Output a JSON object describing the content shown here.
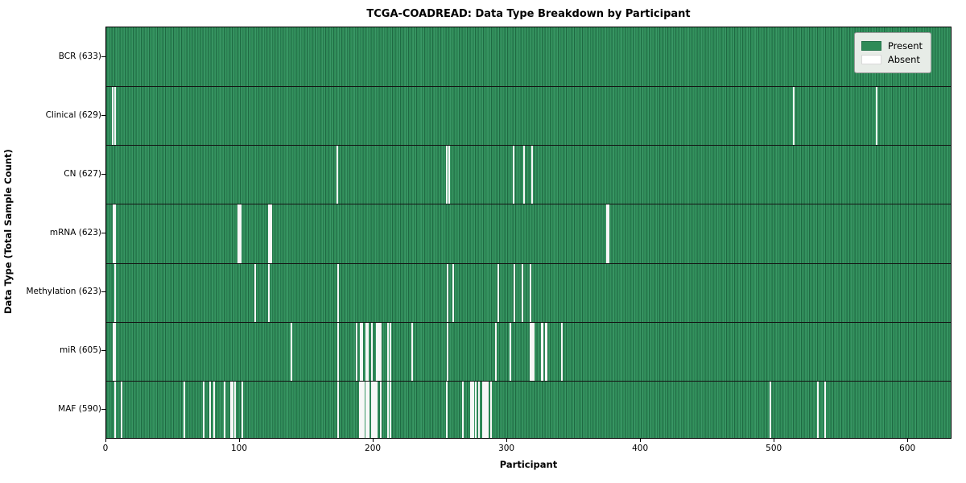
{
  "title": "TCGA-COADREAD: Data Type Breakdown by Participant",
  "axes": {
    "xlabel": "Participant",
    "ylabel": "Data Type (Total Sample Count)"
  },
  "legend": {
    "present_label": "Present",
    "absent_label": "Absent"
  },
  "chart_data": {
    "type": "heatmap",
    "title": "TCGA-COADREAD: Data Type Breakdown by Participant",
    "xlabel": "Participant",
    "ylabel": "Data Type (Total Sample Count)",
    "xlim": [
      0,
      633
    ],
    "x_ticks": [
      0,
      100,
      200,
      300,
      400,
      500,
      600
    ],
    "n_participants": 633,
    "grid": false,
    "legend_position": "upper right",
    "colors": {
      "present": "#2e8b57",
      "present_edge": "#1f6a43",
      "absent": "#ffffff"
    },
    "legend_entries": [
      {
        "label": "Present",
        "color": "#2e8b57"
      },
      {
        "label": "Absent",
        "color": "#ffffff"
      }
    ],
    "rows": [
      {
        "label": "BCR (633)",
        "data_type": "BCR",
        "present_count": 633,
        "absent_count": 0,
        "absent_participants": []
      },
      {
        "label": "Clinical (629)",
        "data_type": "Clinical",
        "present_count": 629,
        "absent_count": 4,
        "absent_participants": [
          4,
          6,
          514,
          576
        ]
      },
      {
        "label": "CN (627)",
        "data_type": "CN",
        "present_count": 627,
        "absent_count": 6,
        "absent_participants": [
          172,
          254,
          256,
          304,
          312,
          318
        ]
      },
      {
        "label": "mRNA (623)",
        "data_type": "mRNA",
        "present_count": 623,
        "absent_count": 10,
        "absent_participants": [
          5,
          6,
          98,
          99,
          100,
          121,
          122,
          123,
          374,
          375
        ]
      },
      {
        "label": "Methylation (623)",
        "data_type": "Methylation",
        "present_count": 623,
        "absent_count": 10,
        "absent_participants": [
          6,
          111,
          121,
          173,
          255,
          259,
          293,
          305,
          311,
          317
        ]
      },
      {
        "label": "miR (605)",
        "data_type": "miR",
        "present_count": 605,
        "absent_count": 28,
        "absent_participants": [
          5,
          6,
          138,
          173,
          187,
          190,
          191,
          194,
          195,
          198,
          202,
          203,
          204,
          205,
          210,
          212,
          228,
          255,
          291,
          302,
          317,
          318,
          319,
          325,
          326,
          328,
          329,
          340
        ]
      },
      {
        "label": "MAF (590)",
        "data_type": "MAF",
        "present_count": 590,
        "absent_count": 43,
        "absent_participants": [
          6,
          11,
          58,
          72,
          77,
          80,
          88,
          93,
          94,
          96,
          101,
          173,
          189,
          190,
          191,
          192,
          194,
          195,
          196,
          198,
          199,
          200,
          201,
          202,
          205,
          210,
          212,
          254,
          266,
          272,
          273,
          274,
          276,
          278,
          281,
          282,
          283,
          284,
          285,
          287,
          496,
          532,
          537
        ]
      }
    ]
  }
}
